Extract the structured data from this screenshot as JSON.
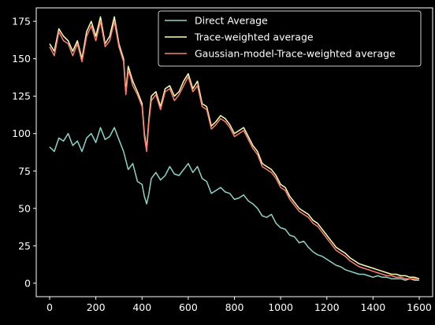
{
  "chart_data": {
    "type": "line",
    "title": "",
    "xlabel": "",
    "ylabel": "",
    "xlim": [
      -58,
      1658
    ],
    "ylim": [
      -9,
      184
    ],
    "x_ticks": [
      0,
      200,
      400,
      600,
      800,
      1000,
      1200,
      1400,
      1600
    ],
    "y_ticks": [
      0,
      25,
      50,
      75,
      100,
      125,
      150,
      175
    ],
    "grid": false,
    "legend_position": "upper right",
    "background": "#000000",
    "series": [
      {
        "name": "Direct Average",
        "color": "#8dd3c7",
        "line_width": 1.5,
        "x": [
          0,
          20,
          40,
          60,
          80,
          100,
          120,
          140,
          160,
          180,
          200,
          220,
          240,
          260,
          280,
          300,
          320,
          340,
          360,
          380,
          400,
          410,
          420,
          430,
          440,
          460,
          480,
          500,
          520,
          540,
          560,
          580,
          600,
          620,
          640,
          660,
          680,
          700,
          720,
          740,
          760,
          780,
          800,
          820,
          840,
          860,
          880,
          900,
          920,
          940,
          960,
          980,
          1000,
          1020,
          1040,
          1060,
          1080,
          1100,
          1120,
          1140,
          1160,
          1180,
          1200,
          1220,
          1240,
          1260,
          1280,
          1300,
          1320,
          1340,
          1360,
          1380,
          1400,
          1420,
          1440,
          1460,
          1480,
          1500,
          1520,
          1540,
          1560,
          1580,
          1600
        ],
        "y": [
          91,
          88,
          97,
          95,
          100,
          92,
          95,
          88,
          97,
          100,
          94,
          104,
          96,
          98,
          104,
          96,
          88,
          76,
          80,
          68,
          66,
          58,
          53,
          60,
          70,
          74,
          69,
          72,
          78,
          73,
          72,
          76,
          80,
          74,
          78,
          70,
          68,
          60,
          62,
          64,
          61,
          60,
          56,
          57,
          59,
          55,
          53,
          50,
          45,
          44,
          46,
          40,
          37,
          36,
          32,
          31,
          27,
          28,
          24,
          21,
          19,
          18,
          16,
          14,
          12,
          11,
          9,
          8,
          7,
          6,
          6,
          5,
          4,
          5,
          4,
          4,
          3,
          3,
          3,
          2,
          3,
          2,
          2
        ]
      },
      {
        "name": "Trace-weighted average",
        "color": "#ffffb3",
        "line_width": 1.5,
        "x": [
          0,
          20,
          40,
          60,
          80,
          100,
          120,
          140,
          160,
          180,
          200,
          220,
          240,
          260,
          280,
          300,
          320,
          330,
          340,
          350,
          360,
          380,
          400,
          410,
          420,
          430,
          440,
          460,
          480,
          500,
          520,
          540,
          560,
          580,
          600,
          620,
          640,
          660,
          680,
          700,
          720,
          740,
          760,
          780,
          800,
          820,
          840,
          860,
          880,
          900,
          920,
          940,
          960,
          980,
          1000,
          1020,
          1040,
          1060,
          1080,
          1100,
          1120,
          1140,
          1160,
          1180,
          1200,
          1220,
          1240,
          1260,
          1280,
          1300,
          1320,
          1340,
          1360,
          1380,
          1400,
          1420,
          1440,
          1460,
          1480,
          1500,
          1520,
          1540,
          1560,
          1580,
          1600
        ],
        "y": [
          160,
          155,
          170,
          165,
          162,
          155,
          162,
          150,
          168,
          175,
          165,
          178,
          160,
          165,
          178,
          160,
          150,
          128,
          145,
          140,
          135,
          128,
          120,
          100,
          90,
          110,
          125,
          128,
          118,
          130,
          132,
          125,
          128,
          135,
          140,
          130,
          135,
          120,
          118,
          105,
          108,
          112,
          110,
          106,
          100,
          102,
          104,
          98,
          92,
          88,
          80,
          78,
          76,
          72,
          66,
          64,
          58,
          54,
          50,
          48,
          46,
          42,
          40,
          36,
          32,
          28,
          24,
          22,
          20,
          17,
          15,
          13,
          12,
          11,
          10,
          9,
          8,
          7,
          6,
          6,
          5,
          5,
          4,
          4,
          3
        ]
      },
      {
        "name": "Gaussian-model-Trace-weighted average",
        "color": "#fb8072",
        "line_width": 1.5,
        "x": [
          0,
          20,
          40,
          60,
          80,
          100,
          120,
          140,
          160,
          180,
          200,
          220,
          240,
          260,
          280,
          300,
          320,
          330,
          340,
          350,
          360,
          380,
          400,
          410,
          420,
          430,
          440,
          460,
          480,
          500,
          520,
          540,
          560,
          580,
          600,
          620,
          640,
          660,
          680,
          700,
          720,
          740,
          760,
          780,
          800,
          820,
          840,
          860,
          880,
          900,
          920,
          940,
          960,
          980,
          1000,
          1020,
          1040,
          1060,
          1080,
          1100,
          1120,
          1140,
          1160,
          1180,
          1200,
          1220,
          1240,
          1260,
          1280,
          1300,
          1320,
          1340,
          1360,
          1380,
          1400,
          1420,
          1440,
          1460,
          1480,
          1500,
          1520,
          1540,
          1560,
          1580,
          1600
        ],
        "y": [
          158,
          152,
          168,
          162,
          160,
          152,
          160,
          148,
          165,
          172,
          162,
          175,
          158,
          162,
          175,
          158,
          148,
          126,
          142,
          138,
          132,
          126,
          118,
          98,
          88,
          108,
          122,
          126,
          116,
          128,
          130,
          122,
          126,
          132,
          138,
          128,
          132,
          118,
          116,
          103,
          106,
          110,
          108,
          104,
          98,
          100,
          102,
          96,
          90,
          86,
          78,
          76,
          74,
          70,
          64,
          62,
          56,
          52,
          48,
          46,
          44,
          40,
          38,
          34,
          30,
          26,
          22,
          20,
          18,
          15,
          13,
          11,
          10,
          9,
          8,
          7,
          6,
          5,
          5,
          4,
          4,
          3,
          3,
          3,
          2
        ]
      }
    ]
  }
}
